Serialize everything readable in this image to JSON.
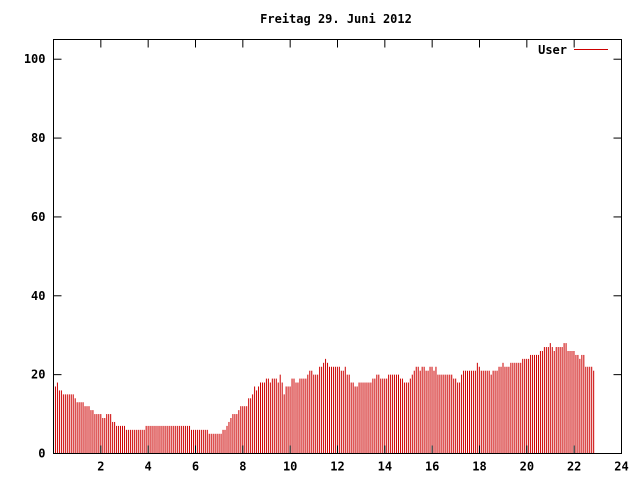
{
  "chart_data": {
    "type": "bar",
    "title": "Freitag 29. Juni 2012",
    "xlabel": "",
    "ylabel": "",
    "xlim": [
      0,
      24
    ],
    "ylim": [
      0,
      105
    ],
    "x_ticks": [
      2,
      4,
      6,
      8,
      10,
      12,
      14,
      16,
      18,
      20,
      22,
      24
    ],
    "y_ticks": [
      0,
      20,
      40,
      60,
      80,
      100
    ],
    "grid": false,
    "legend": "top-right",
    "series": [
      {
        "name": "User",
        "color": "#cc0000",
        "sample_interval_hours": 0.0833,
        "values": [
          17,
          18,
          16,
          16,
          15,
          15,
          15,
          15,
          15,
          15,
          14,
          13,
          13,
          13,
          13,
          12,
          12,
          12,
          11,
          11,
          10,
          10,
          10,
          10,
          9,
          9,
          10,
          10,
          10,
          8,
          8,
          7,
          7,
          7,
          7,
          7,
          6,
          6,
          6,
          6,
          6,
          6,
          6,
          6,
          6,
          6,
          7,
          7,
          7,
          7,
          7,
          7,
          7,
          7,
          7,
          7,
          7,
          7,
          7,
          7,
          7,
          7,
          7,
          7,
          7,
          7,
          7,
          7,
          7,
          6,
          6,
          6,
          6,
          6,
          6,
          6,
          6,
          6,
          5,
          5,
          5,
          5,
          5,
          5,
          5,
          6,
          6,
          7,
          8,
          9,
          10,
          10,
          10,
          11,
          12,
          12,
          12,
          12,
          14,
          14,
          15,
          17,
          16,
          17,
          18,
          18,
          18,
          19,
          19,
          18,
          19,
          19,
          19,
          18,
          20,
          18,
          15,
          17,
          17,
          17,
          19,
          19,
          18,
          18,
          19,
          19,
          19,
          19,
          20,
          21,
          21,
          20,
          20,
          20,
          22,
          22,
          23,
          24,
          23,
          22,
          22,
          22,
          22,
          22,
          22,
          21,
          21,
          22,
          20,
          20,
          18,
          18,
          17,
          17,
          18,
          18,
          18,
          18,
          18,
          18,
          18,
          19,
          19,
          20,
          20,
          19,
          19,
          19,
          19,
          20,
          20,
          20,
          20,
          20,
          20,
          19,
          19,
          18,
          18,
          18,
          19,
          20,
          21,
          22,
          22,
          21,
          22,
          22,
          21,
          21,
          22,
          22,
          21,
          22,
          20,
          20,
          20,
          20,
          20,
          20,
          20,
          20,
          19,
          19,
          18,
          18,
          20,
          21,
          21,
          21,
          21,
          21,
          21,
          21,
          23,
          22,
          21,
          21,
          21,
          21,
          21,
          20,
          21,
          21,
          21,
          22,
          22,
          23,
          22,
          22,
          22,
          23,
          23,
          23,
          23,
          23,
          23,
          24,
          24,
          24,
          24,
          25,
          25,
          25,
          25,
          25,
          26,
          26,
          27,
          27,
          27,
          28,
          27,
          26,
          27,
          27,
          27,
          27,
          28,
          28,
          26,
          26,
          26,
          26,
          25,
          25,
          24,
          25,
          25,
          22,
          22,
          22,
          22,
          21
        ]
      }
    ]
  }
}
